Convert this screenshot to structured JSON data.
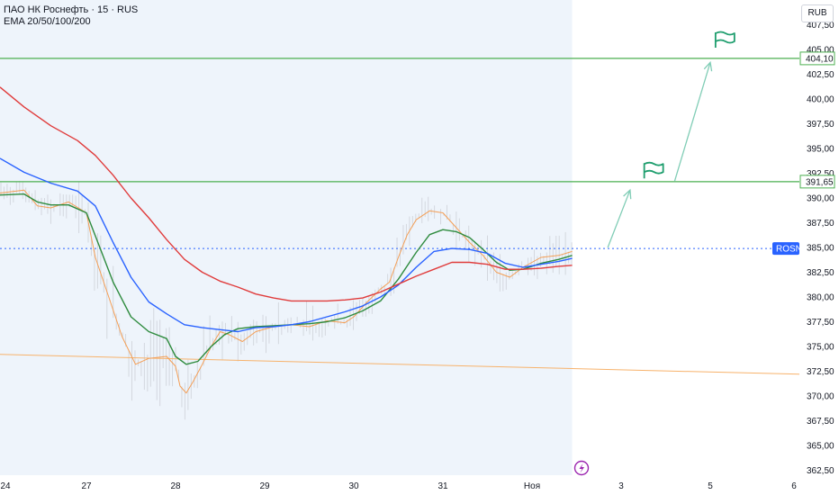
{
  "legend": {
    "title": "ПАО НК Роснефть · 15 · RUS",
    "indicator": "EMA 20/50/100/200"
  },
  "currency": "RUB",
  "chart_data": {
    "type": "line",
    "y_ticks": [
      362.5,
      365,
      367.5,
      370,
      372.5,
      375,
      377.5,
      380,
      382.5,
      385,
      387.5,
      390,
      392.5,
      395,
      397.5,
      400,
      402.5,
      405,
      407.5
    ],
    "y_tick_labels": [
      "362,50",
      "365,00",
      "367,50",
      "370,00",
      "372,50",
      "375,00",
      "377,50",
      "380,00",
      "382,50",
      "385,00",
      "387,50",
      "390,00",
      "392,50",
      "395,00",
      "397,50",
      "400,00",
      "402,50",
      "405,00",
      "407,50"
    ],
    "ylim": [
      362.0,
      410.0
    ],
    "x_ticks": [
      {
        "label": "24",
        "pos": 0
      },
      {
        "label": "27",
        "pos": 1
      },
      {
        "label": "28",
        "pos": 2
      },
      {
        "label": "29",
        "pos": 3
      },
      {
        "label": "30",
        "pos": 4
      },
      {
        "label": "31",
        "pos": 5
      },
      {
        "label": "Ноя",
        "pos": 6
      },
      {
        "label": "3",
        "pos": 7
      },
      {
        "label": "5",
        "pos": 8
      },
      {
        "label": "6",
        "pos": 9
      }
    ],
    "xlim": [
      0.03,
      9.0
    ],
    "history_end": 6.45,
    "levels": [
      {
        "value": 404.1,
        "label": "404,10",
        "color": "#4caf50"
      },
      {
        "value": 391.65,
        "label": "391,65",
        "color": "#4caf50"
      }
    ],
    "current": {
      "value": 384.9,
      "label": "ROSN",
      "color": "#2962ff"
    },
    "trendline": {
      "points": [
        [
          0.03,
          374.2
        ],
        [
          9.0,
          372.2
        ]
      ],
      "color": "#f7b26b"
    },
    "projection": {
      "color": "#81cdb6",
      "points": [
        [
          6.85,
          385.0
        ],
        [
          7.1,
          390.8
        ],
        [
          7.6,
          391.7
        ],
        [
          8.0,
          403.7
        ]
      ],
      "flags": [
        [
          7.35,
          392.8
        ],
        [
          8.15,
          406.0
        ]
      ]
    },
    "series": [
      {
        "color": "#f59e54",
        "width": 1,
        "points": [
          [
            0.03,
            390.5
          ],
          [
            0.3,
            390.8
          ],
          [
            0.45,
            389.2
          ],
          [
            0.6,
            389.0
          ],
          [
            0.8,
            389.6
          ],
          [
            1.0,
            388.5
          ],
          [
            1.1,
            384.0
          ],
          [
            1.25,
            380.0
          ],
          [
            1.4,
            376.0
          ],
          [
            1.55,
            373.2
          ],
          [
            1.7,
            373.8
          ],
          [
            1.9,
            374.0
          ],
          [
            2.0,
            373.0
          ],
          [
            2.05,
            371.0
          ],
          [
            2.12,
            370.3
          ],
          [
            2.2,
            371.5
          ],
          [
            2.3,
            373.2
          ],
          [
            2.4,
            375.0
          ],
          [
            2.5,
            376.5
          ],
          [
            2.6,
            376.2
          ],
          [
            2.75,
            375.5
          ],
          [
            2.9,
            376.5
          ],
          [
            3.1,
            377.0
          ],
          [
            3.3,
            377.2
          ],
          [
            3.5,
            377.0
          ],
          [
            3.7,
            377.6
          ],
          [
            3.9,
            377.4
          ],
          [
            4.0,
            378.0
          ],
          [
            4.15,
            379.5
          ],
          [
            4.3,
            380.8
          ],
          [
            4.4,
            381.5
          ],
          [
            4.5,
            384.0
          ],
          [
            4.6,
            386.3
          ],
          [
            4.7,
            387.8
          ],
          [
            4.85,
            388.7
          ],
          [
            5.0,
            388.5
          ],
          [
            5.15,
            387.0
          ],
          [
            5.3,
            385.5
          ],
          [
            5.45,
            384.2
          ],
          [
            5.6,
            382.5
          ],
          [
            5.75,
            382.0
          ],
          [
            5.9,
            383.0
          ],
          [
            6.1,
            384.0
          ],
          [
            6.3,
            384.2
          ],
          [
            6.45,
            384.6
          ]
        ]
      },
      {
        "color": "#2e8b3e",
        "width": 1.4,
        "points": [
          [
            0.03,
            390.3
          ],
          [
            0.3,
            390.4
          ],
          [
            0.45,
            389.6
          ],
          [
            0.6,
            389.3
          ],
          [
            0.8,
            389.3
          ],
          [
            1.0,
            388.5
          ],
          [
            1.15,
            385.0
          ],
          [
            1.3,
            381.5
          ],
          [
            1.5,
            378.0
          ],
          [
            1.7,
            376.5
          ],
          [
            1.9,
            375.8
          ],
          [
            2.0,
            374.0
          ],
          [
            2.12,
            373.2
          ],
          [
            2.25,
            373.5
          ],
          [
            2.4,
            375.0
          ],
          [
            2.55,
            376.2
          ],
          [
            2.7,
            376.8
          ],
          [
            2.9,
            377.0
          ],
          [
            3.1,
            377.1
          ],
          [
            3.3,
            377.2
          ],
          [
            3.5,
            377.3
          ],
          [
            3.7,
            377.5
          ],
          [
            3.9,
            377.9
          ],
          [
            4.1,
            378.6
          ],
          [
            4.3,
            379.6
          ],
          [
            4.5,
            381.8
          ],
          [
            4.7,
            384.5
          ],
          [
            4.85,
            386.3
          ],
          [
            5.0,
            386.8
          ],
          [
            5.15,
            386.6
          ],
          [
            5.3,
            386.0
          ],
          [
            5.45,
            384.8
          ],
          [
            5.6,
            383.5
          ],
          [
            5.75,
            382.7
          ],
          [
            5.9,
            382.8
          ],
          [
            6.1,
            383.4
          ],
          [
            6.3,
            383.8
          ],
          [
            6.45,
            384.2
          ]
        ]
      },
      {
        "color": "#2962ff",
        "width": 1.4,
        "points": [
          [
            0.03,
            394.0
          ],
          [
            0.3,
            392.6
          ],
          [
            0.6,
            391.5
          ],
          [
            0.9,
            390.7
          ],
          [
            1.1,
            389.2
          ],
          [
            1.3,
            385.5
          ],
          [
            1.5,
            382.0
          ],
          [
            1.7,
            379.5
          ],
          [
            1.9,
            378.3
          ],
          [
            2.1,
            377.2
          ],
          [
            2.3,
            376.9
          ],
          [
            2.5,
            376.7
          ],
          [
            2.7,
            376.5
          ],
          [
            2.9,
            376.9
          ],
          [
            3.1,
            377.0
          ],
          [
            3.3,
            377.2
          ],
          [
            3.5,
            377.5
          ],
          [
            3.7,
            378.0
          ],
          [
            3.9,
            378.5
          ],
          [
            4.1,
            379.1
          ],
          [
            4.3,
            380.0
          ],
          [
            4.5,
            381.2
          ],
          [
            4.7,
            383.0
          ],
          [
            4.9,
            384.6
          ],
          [
            5.1,
            384.9
          ],
          [
            5.3,
            384.8
          ],
          [
            5.5,
            384.4
          ],
          [
            5.7,
            383.4
          ],
          [
            5.9,
            383.0
          ],
          [
            6.1,
            383.3
          ],
          [
            6.3,
            383.6
          ],
          [
            6.45,
            383.9
          ]
        ]
      },
      {
        "color": "#e03b3b",
        "width": 1.4,
        "points": [
          [
            0.03,
            401.2
          ],
          [
            0.3,
            399.2
          ],
          [
            0.6,
            397.3
          ],
          [
            0.9,
            395.8
          ],
          [
            1.1,
            394.3
          ],
          [
            1.3,
            392.3
          ],
          [
            1.5,
            390.0
          ],
          [
            1.7,
            388.0
          ],
          [
            1.9,
            385.8
          ],
          [
            2.1,
            383.8
          ],
          [
            2.3,
            382.5
          ],
          [
            2.5,
            381.6
          ],
          [
            2.7,
            381.0
          ],
          [
            2.9,
            380.3
          ],
          [
            3.1,
            379.9
          ],
          [
            3.3,
            379.6
          ],
          [
            3.5,
            379.6
          ],
          [
            3.7,
            379.6
          ],
          [
            3.9,
            379.7
          ],
          [
            4.1,
            379.9
          ],
          [
            4.3,
            380.5
          ],
          [
            4.5,
            381.3
          ],
          [
            4.7,
            382.1
          ],
          [
            4.9,
            382.8
          ],
          [
            5.1,
            383.5
          ],
          [
            5.3,
            383.5
          ],
          [
            5.5,
            383.3
          ],
          [
            5.7,
            382.8
          ],
          [
            5.9,
            382.8
          ],
          [
            6.1,
            382.9
          ],
          [
            6.3,
            383.1
          ],
          [
            6.45,
            383.2
          ]
        ]
      }
    ]
  }
}
